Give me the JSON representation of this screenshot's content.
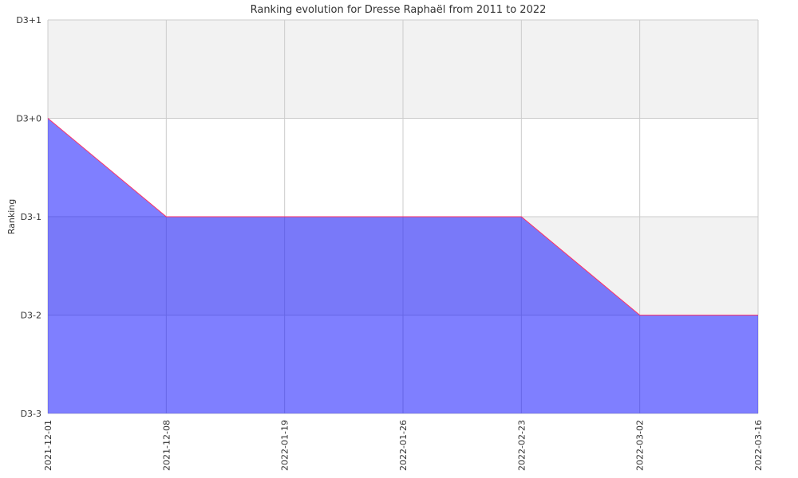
{
  "chart_data": {
    "type": "area",
    "title": "Ranking evolution for Dresse Raphaël  from 2011 to 2022",
    "ylabel": "Ranking",
    "xlabel": "",
    "x": [
      "2021-12-01",
      "2021-12-08",
      "2022-01-19",
      "2022-01-26",
      "2022-02-23",
      "2022-03-02",
      "2022-03-16"
    ],
    "y_ticks": [
      "D3+1",
      "D3+0",
      "D3-1",
      "D3-2",
      "D3-3"
    ],
    "series": [
      {
        "values": [
          "D3+0",
          "D3-1",
          "D3-1",
          "D3-1",
          "D3-1",
          "D3-2",
          "D3-2"
        ]
      }
    ],
    "grid": true,
    "colors": {
      "fill": "#0000ff",
      "line": "#ff3366",
      "band": "#f2f2f2",
      "grid": "#cccccc"
    }
  }
}
